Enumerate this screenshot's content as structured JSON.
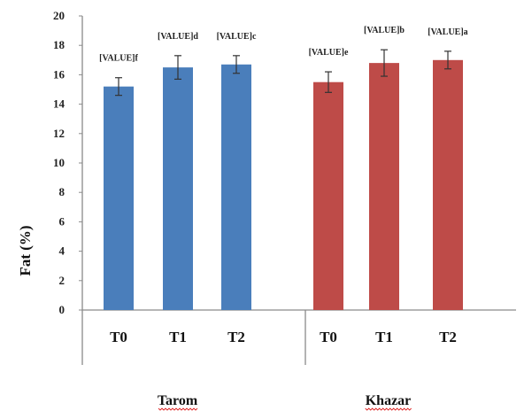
{
  "chart_data": {
    "type": "bar",
    "ylabel": "Fat (%)",
    "ylim": [
      0,
      20
    ],
    "yticks": [
      "0",
      "2",
      "4",
      "6",
      "8",
      "10",
      "12",
      "14",
      "16",
      "18",
      "20"
    ],
    "grid": false,
    "categories": [
      "T0",
      "T1",
      "T2",
      "T0",
      "T1",
      "T2"
    ],
    "groups": [
      {
        "name": "Tarom",
        "color": "#4a7ebb",
        "indices": [
          0,
          1,
          2
        ]
      },
      {
        "name": "Khazar",
        "color": "#be4b48",
        "indices": [
          3,
          4,
          5
        ]
      }
    ],
    "values": [
      15.2,
      16.5,
      16.7,
      15.5,
      16.8,
      17.0
    ],
    "errors": [
      0.6,
      0.8,
      0.6,
      0.7,
      0.9,
      0.6
    ],
    "data_labels": [
      "[VALUE]f",
      "[VALUE]d",
      "[VALUE]c",
      "[VALUE]e",
      "[VALUE]b",
      "[VALUE]a"
    ]
  }
}
